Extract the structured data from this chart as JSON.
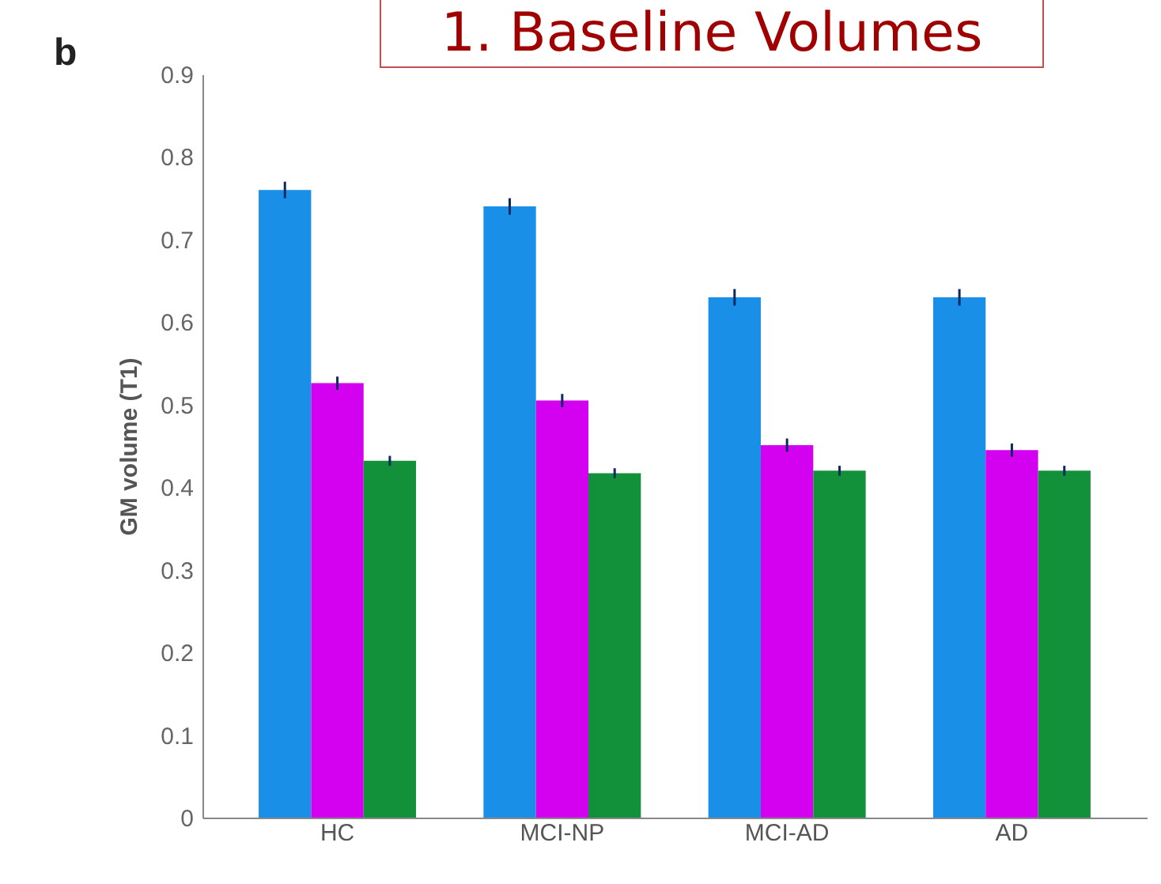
{
  "chart_data": {
    "type": "bar",
    "title": "1. Baseline Volumes",
    "ylabel": "GM volume (T1)",
    "annotations": [
      "b"
    ],
    "categories": [
      "HC",
      "MCI-NP",
      "MCI-AD",
      "AD"
    ],
    "series": [
      {
        "color": "#1a8fe8",
        "values": [
          0.76,
          0.74,
          0.63,
          0.63
        ],
        "errors": [
          0.01,
          0.01,
          0.01,
          0.01
        ]
      },
      {
        "color": "#d400f0",
        "values": [
          0.526,
          0.505,
          0.451,
          0.445
        ],
        "errors": [
          0.008,
          0.008,
          0.008,
          0.008
        ]
      },
      {
        "color": "#13903a",
        "values": [
          0.432,
          0.417,
          0.42,
          0.42
        ],
        "errors": [
          0.006,
          0.006,
          0.006,
          0.006
        ]
      }
    ],
    "ylim": [
      0,
      0.9
    ],
    "yticks": [
      0,
      0.1,
      0.2,
      0.3,
      0.4,
      0.5,
      0.6,
      0.7,
      0.8,
      0.9
    ],
    "grid": false,
    "legend": false
  }
}
